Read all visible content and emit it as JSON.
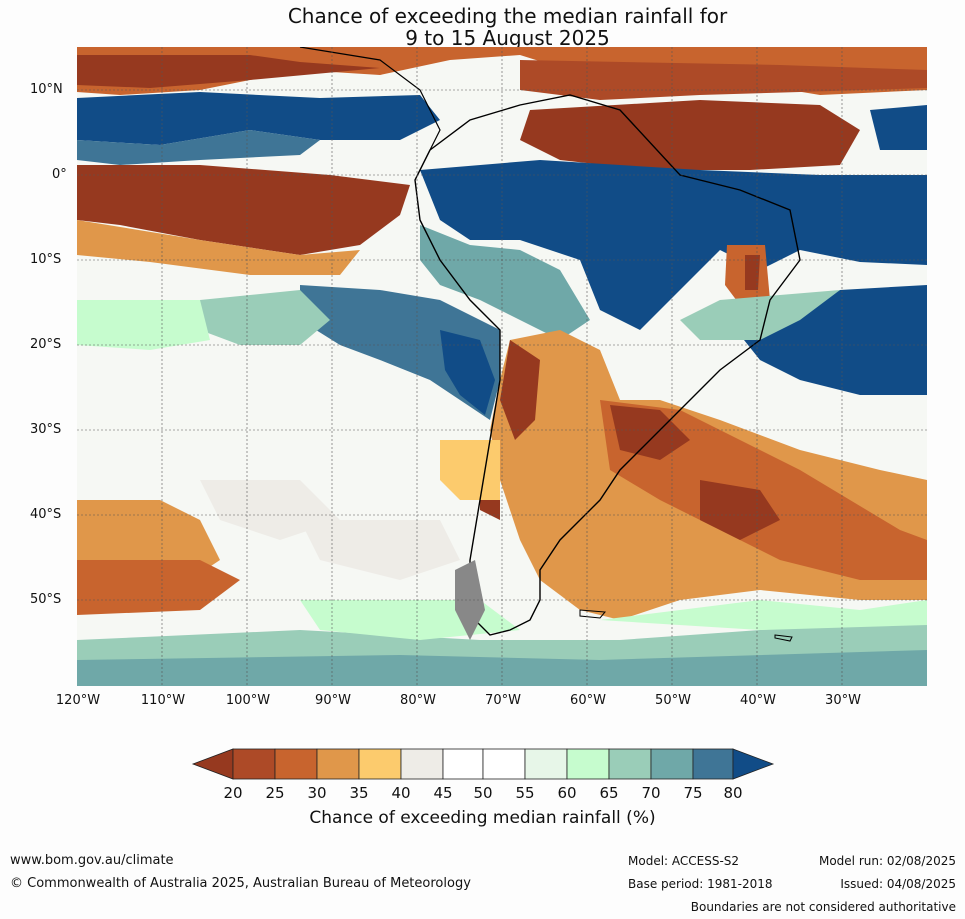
{
  "title": {
    "line1": "Chance of exceeding the median rainfall for",
    "line2": "9 to 15 August 2025"
  },
  "axes": {
    "lat_labels": [
      "10°N",
      "0°",
      "10°S",
      "20°S",
      "30°S",
      "40°S",
      "50°S"
    ],
    "lon_labels": [
      "120°W",
      "110°W",
      "100°W",
      "90°W",
      "80°W",
      "70°W",
      "60°W",
      "50°W",
      "40°W",
      "30°W"
    ]
  },
  "colorbar": {
    "title": "Chance of exceeding median rainfall (%)",
    "ticks": [
      "20",
      "25",
      "30",
      "35",
      "40",
      "45",
      "50",
      "55",
      "60",
      "65",
      "70",
      "75",
      "80"
    ],
    "colors": [
      "#96391f",
      "#ad4a27",
      "#c8642e",
      "#e0974a",
      "#fccb6d",
      "#eeece7",
      "#ffffff",
      "#ffffff",
      "#e7f6e8",
      "#c6fcce",
      "#9acdb8",
      "#6fa8a8",
      "#3f7596",
      "#114c87"
    ]
  },
  "footer": {
    "website": "www.bom.gov.au/climate",
    "copyright": "© Commonwealth of Australia 2025, Australian Bureau of Meteorology",
    "model": "Model: ACCESS-S2",
    "base_period": "Base period: 1981-2018",
    "model_run": "Model run: 02/08/2025",
    "issued": "Issued: 04/08/2025",
    "disclaimer": "Boundaries are not considered authoritative"
  }
}
